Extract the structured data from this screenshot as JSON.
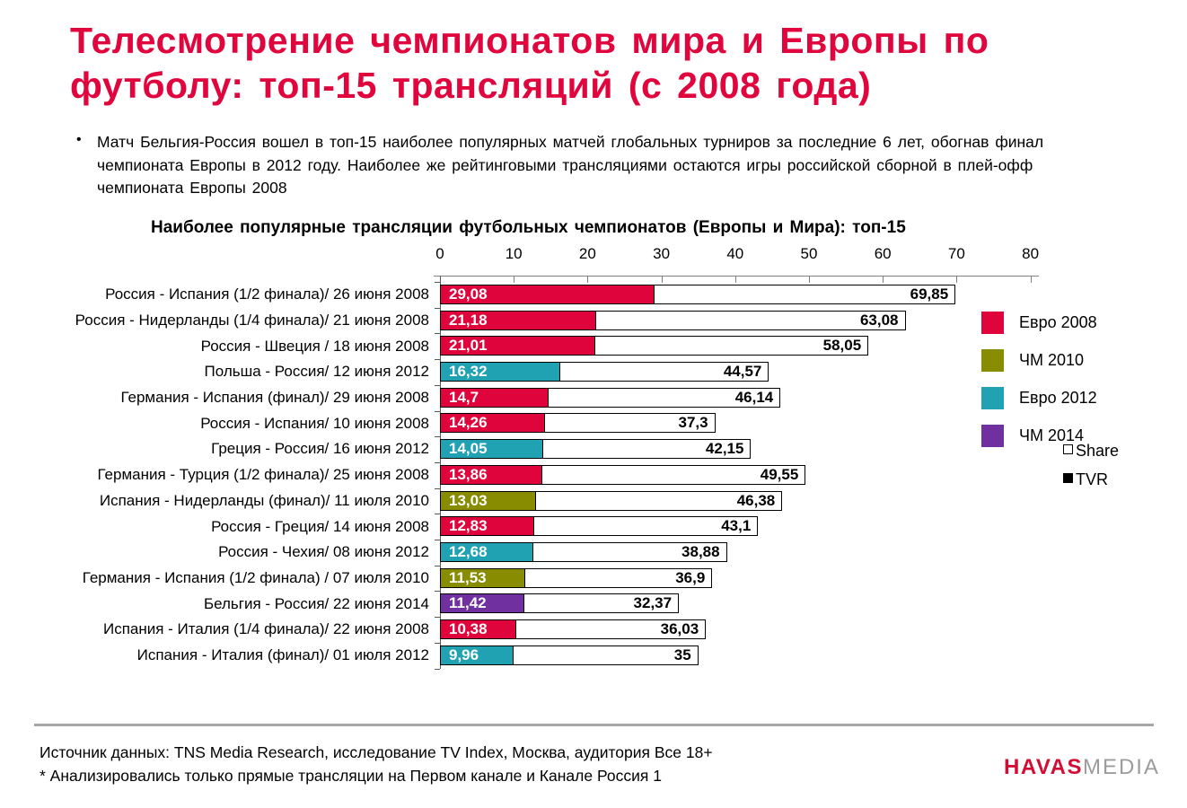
{
  "title": {
    "lines": [
      "Телесмотрение чемпионатов мира и Европы по",
      "футболу: топ-15 трансляций (с 2008 года)"
    ]
  },
  "bullet": {
    "glyph": "•",
    "lines": [
      "Матч Бельгия-Россия  вошел в топ-15 наиболее популярных  матчей глобальных  турниров за последние  6 лет, обогнав финал",
      "чемпионата  Европы в 2012 году. Наиболее  же рейтинговыми  трансляциями  остаются игры российской сборной в плей-офф",
      "чемпионата  Европы 2008"
    ]
  },
  "chart_data": {
    "type": "bar",
    "orientation": "horizontal",
    "title": "Наиболее популярные  трансляции футбольных  чемпионатов (Европы и Мира):  топ-15",
    "xlim": [
      0,
      80
    ],
    "axis_ticks": [
      0,
      10,
      20,
      30,
      40,
      50,
      60,
      70,
      80
    ],
    "grid": false,
    "legend_position": "right",
    "series_labels": {
      "share": "Share",
      "tvr": "TVR"
    },
    "tournaments": [
      {
        "id": "euro2008",
        "label": "Евро 2008",
        "color": "#E0043C"
      },
      {
        "id": "wc2010",
        "label": "ЧМ 2010",
        "color": "#878C00"
      },
      {
        "id": "euro2012",
        "label": "Евро 2012",
        "color": "#21A2B3"
      },
      {
        "id": "wc2014",
        "label": "ЧМ 2014",
        "color": "#7030A0"
      }
    ],
    "rows": [
      {
        "category": "Россия - Испания (1/2 финала)/ 26 июня 2008",
        "tvr": 29.08,
        "tvr_label": "29,08",
        "share": 69.85,
        "share_label": "69,85",
        "tournament": "euro2008"
      },
      {
        "category": "Россия - Нидерланды (1/4 финала)/ 21 июня 2008",
        "tvr": 21.18,
        "tvr_label": "21,18",
        "share": 63.08,
        "share_label": "63,08",
        "tournament": "euro2008"
      },
      {
        "category": "Россия - Швеция / 18 июня 2008",
        "tvr": 21.01,
        "tvr_label": "21,01",
        "share": 58.05,
        "share_label": "58,05",
        "tournament": "euro2008"
      },
      {
        "category": "Польша - Россия/ 12 июня 2012",
        "tvr": 16.32,
        "tvr_label": "16,32",
        "share": 44.57,
        "share_label": "44,57",
        "tournament": "euro2012"
      },
      {
        "category": "Германия - Испания (финал)/ 29 июня 2008",
        "tvr": 14.7,
        "tvr_label": "14,7",
        "share": 46.14,
        "share_label": "46,14",
        "tournament": "euro2008"
      },
      {
        "category": "Россия - Испания/ 10 июня 2008",
        "tvr": 14.26,
        "tvr_label": "14,26",
        "share": 37.3,
        "share_label": "37,3",
        "tournament": "euro2008"
      },
      {
        "category": "Греция - Россия/ 16 июня 2012",
        "tvr": 14.05,
        "tvr_label": "14,05",
        "share": 42.15,
        "share_label": "42,15",
        "tournament": "euro2012"
      },
      {
        "category": "Германия - Турция (1/2 финала)/ 25 июня 2008",
        "tvr": 13.86,
        "tvr_label": "13,86",
        "share": 49.55,
        "share_label": "49,55",
        "tournament": "euro2008"
      },
      {
        "category": "Испания - Нидерланды (финал)/ 11 июля 2010",
        "tvr": 13.03,
        "tvr_label": "13,03",
        "share": 46.38,
        "share_label": "46,38",
        "tournament": "wc2010"
      },
      {
        "category": "Россия - Греция/ 14 июня 2008",
        "tvr": 12.83,
        "tvr_label": "12,83",
        "share": 43.1,
        "share_label": "43,1",
        "tournament": "euro2008"
      },
      {
        "category": "Россия - Чехия/ 08 июня 2012",
        "tvr": 12.68,
        "tvr_label": "12,68",
        "share": 38.88,
        "share_label": "38,88",
        "tournament": "euro2012"
      },
      {
        "category": "Германия - Испания (1/2 финала) / 07 июля 2010",
        "tvr": 11.53,
        "tvr_label": "11,53",
        "share": 36.9,
        "share_label": "36,9",
        "tournament": "wc2010"
      },
      {
        "category": "Бельгия - Россия/ 22 июня 2014",
        "tvr": 11.42,
        "tvr_label": "11,42",
        "share": 32.37,
        "share_label": "32,37",
        "tournament": "wc2014"
      },
      {
        "category": "Испания - Италия (1/4 финала)/ 22 июня 2008",
        "tvr": 10.38,
        "tvr_label": "10,38",
        "share": 36.03,
        "share_label": "36,03",
        "tournament": "euro2008"
      },
      {
        "category": "Испания - Италия (финал)/ 01 июля 2012",
        "tvr": 9.96,
        "tvr_label": "9,96",
        "share": 35,
        "share_label": "35",
        "tournament": "euro2012"
      }
    ]
  },
  "footer": {
    "source": "Источник данных: TNS Media Research, исследование TV Index, Москва, аудитория Все 18+",
    "note": "* Анализировались только прямые трансляции на Первом канале и Канале Россия 1",
    "logo": {
      "part1": "HAVAS",
      "part2": "MEDIA"
    }
  }
}
